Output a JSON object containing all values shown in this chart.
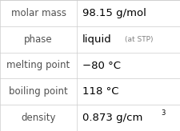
{
  "rows": [
    {
      "label": "molar mass",
      "value": "98.15 g/mol",
      "value_extra": null,
      "value_super": null
    },
    {
      "label": "phase",
      "value": "liquid",
      "value_extra": "(at STP)",
      "value_super": null
    },
    {
      "label": "melting point",
      "value": "−80 °C",
      "value_extra": null,
      "value_super": null
    },
    {
      "label": "boiling point",
      "value": "118 °C",
      "value_extra": null,
      "value_super": null
    },
    {
      "label": "density",
      "value": "0.873 g/cm",
      "value_extra": null,
      "value_super": "3"
    }
  ],
  "bg_color": "#ffffff",
  "line_color": "#cccccc",
  "label_color": "#505050",
  "value_color": "#000000",
  "extra_color": "#808080",
  "col_split": 0.425,
  "label_fontsize": 8.5,
  "value_fontsize": 9.5,
  "extra_fontsize": 6.5,
  "super_fontsize": 6.0
}
